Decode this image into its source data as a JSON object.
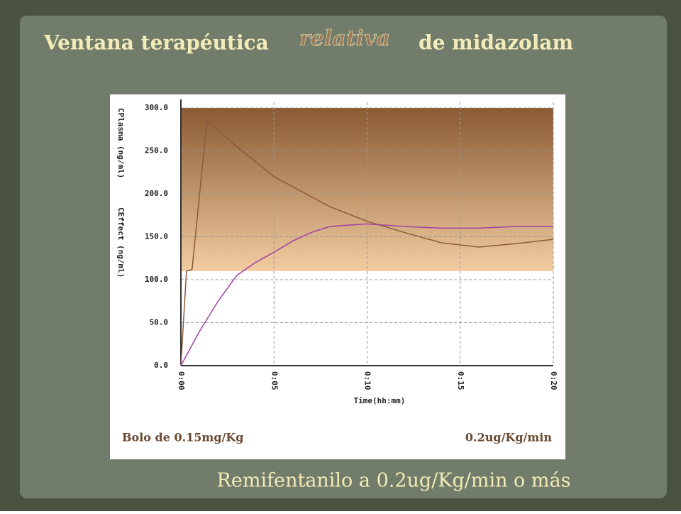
{
  "slide": {
    "title_parts": [
      "Ventana terapéutica",
      "relativa",
      "de midazolam"
    ],
    "subtitle": "Remifentanilo a 0.2ug/Kg/min o más"
  },
  "chart_data": {
    "type": "line",
    "x_label": "Time(hh:mm)",
    "y_labels": [
      "CPlasma (ng/ml)",
      "CEffect (ng/ml)"
    ],
    "annotations": [
      "Bolo de 0.15mg/Kg",
      "0.2ug/Kg/min"
    ],
    "xlim": [
      0,
      20
    ],
    "xticks": [
      {
        "value": 0,
        "label": "0:00"
      },
      {
        "value": 5,
        "label": "0:05"
      },
      {
        "value": 10,
        "label": "0:10"
      },
      {
        "value": 15,
        "label": "0:15"
      },
      {
        "value": 20,
        "label": "0:20"
      }
    ],
    "ylim": [
      0,
      300
    ],
    "yticks": [
      {
        "value": 0,
        "label": "0.0"
      },
      {
        "value": 50,
        "label": "50.0"
      },
      {
        "value": 100,
        "label": "100.0"
      },
      {
        "value": 150,
        "label": "150.0"
      },
      {
        "value": 200,
        "label": "200.0"
      },
      {
        "value": 250,
        "label": "250.0"
      },
      {
        "value": 300,
        "label": "300.0"
      }
    ],
    "grid": true,
    "shaded_range": [
      110,
      300
    ],
    "series": [
      {
        "name": "CPlasma",
        "color": "#8a5a3c",
        "x": [
          0,
          0.3,
          0.6,
          1.4,
          3,
          5,
          8,
          10,
          12,
          14,
          16,
          18,
          20
        ],
        "values": [
          0,
          110,
          112,
          285,
          255,
          220,
          185,
          168,
          155,
          143,
          138,
          142,
          147
        ]
      },
      {
        "name": "CEffect",
        "color": "#a040a8",
        "x": [
          0,
          1,
          2,
          3,
          4,
          5,
          6,
          7,
          8,
          10,
          12,
          14,
          16,
          18,
          20
        ],
        "values": [
          0,
          40,
          75,
          105,
          120,
          132,
          145,
          155,
          162,
          165,
          162,
          160,
          160,
          162,
          162
        ]
      }
    ]
  }
}
